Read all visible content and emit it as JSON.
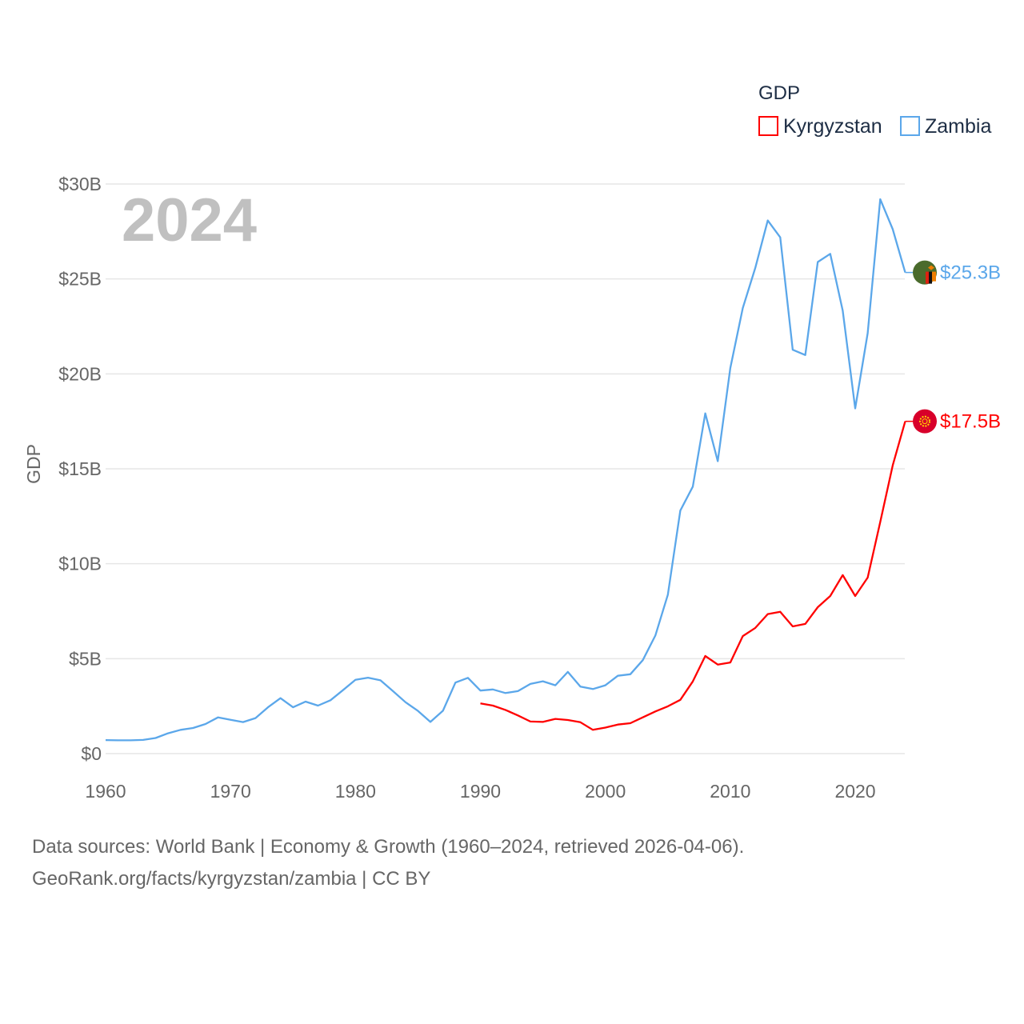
{
  "chart_data": {
    "type": "line",
    "title": "",
    "year_label": "2024",
    "xlabel": "",
    "ylabel": "GDP",
    "xlim": [
      1960,
      2024
    ],
    "ylim": [
      0,
      30
    ],
    "x_ticks": [
      "1960",
      "1970",
      "1980",
      "1990",
      "2000",
      "2010",
      "2020"
    ],
    "x_tick_values": [
      1960,
      1970,
      1980,
      1990,
      2000,
      2010,
      2020
    ],
    "y_ticks": [
      "$0",
      "$5B",
      "$10B",
      "$15B",
      "$20B",
      "$25B",
      "$30B"
    ],
    "y_tick_values": [
      0,
      5,
      10,
      15,
      20,
      25,
      30
    ],
    "grid": true,
    "legend": {
      "title": "GDP",
      "placement": "top-right",
      "entries": [
        "Kyrgyzstan",
        "Zambia"
      ]
    },
    "series": [
      {
        "name": "Kyrgyzstan",
        "color": "#ff0000",
        "flag": "kyrgyzstan-flag",
        "end_label": "$17.5B",
        "x_start": 1990,
        "values": [
          2.64,
          2.53,
          2.3,
          2.01,
          1.69,
          1.67,
          1.83,
          1.77,
          1.65,
          1.25,
          1.37,
          1.53,
          1.6,
          1.91,
          2.22,
          2.49,
          2.83,
          3.8,
          5.14,
          4.69,
          4.8,
          6.19,
          6.62,
          7.35,
          7.47,
          6.7,
          6.83,
          7.71,
          8.3,
          9.4,
          8.3,
          9.27,
          12.2,
          15.18,
          17.5
        ]
      },
      {
        "name": "Zambia",
        "color": "#5ba7ea",
        "flag": "zambia-flag",
        "end_label": "$25.3B",
        "x_start": 1960,
        "values": [
          0.71,
          0.7,
          0.7,
          0.72,
          0.82,
          1.07,
          1.25,
          1.35,
          1.56,
          1.91,
          1.78,
          1.66,
          1.87,
          2.44,
          2.92,
          2.44,
          2.74,
          2.53,
          2.81,
          3.34,
          3.89,
          4.0,
          3.86,
          3.29,
          2.71,
          2.25,
          1.67,
          2.26,
          3.74,
          3.99,
          3.32,
          3.38,
          3.19,
          3.29,
          3.67,
          3.81,
          3.6,
          4.3,
          3.53,
          3.4,
          3.6,
          4.1,
          4.18,
          4.92,
          6.22,
          8.37,
          12.8,
          14.06,
          17.92,
          15.4,
          20.31,
          23.47,
          25.58,
          28.08,
          27.19,
          21.27,
          20.99,
          25.89,
          26.32,
          23.33,
          18.18,
          22.14,
          29.2,
          27.62,
          25.34
        ]
      }
    ]
  },
  "footer": {
    "line1": "Data sources: World Bank | Economy & Growth (1960–2024, retrieved 2026-04-06).",
    "line2": "GeoRank.org/facts/kyrgyzstan/zambia | CC BY"
  }
}
